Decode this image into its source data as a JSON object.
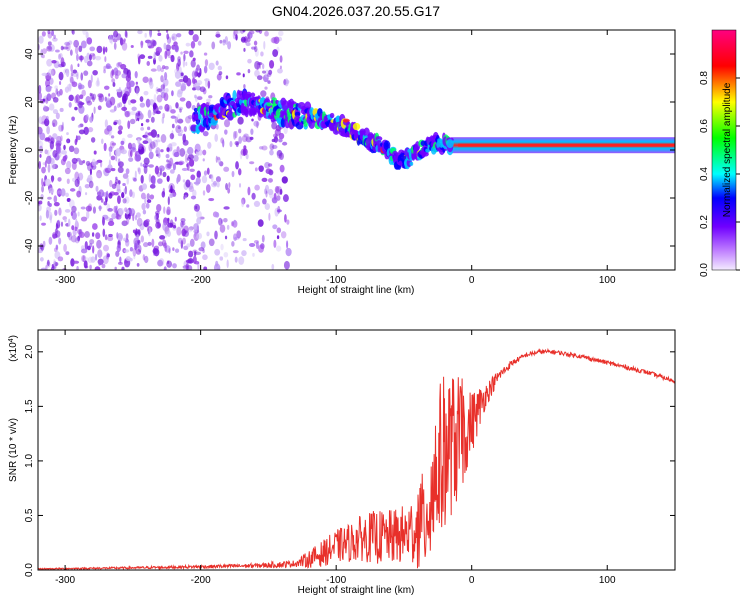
{
  "page": {
    "title": "GN04.2026.037.20.55.G17"
  },
  "chart_data": [
    {
      "type": "heatmap",
      "title": "GN04.2026.037.20.55.G17",
      "xlabel": "Height of straight line (km)",
      "ylabel": "Frequency (Hz)",
      "xlim": [
        -320,
        150
      ],
      "ylim": [
        -50,
        50
      ],
      "xticks": [
        -300,
        -200,
        -100,
        0,
        100
      ],
      "xtick_labels": [
        "-300",
        "-200",
        "-100",
        "0",
        "100"
      ],
      "yticks": [
        -40,
        -20,
        0,
        20,
        40
      ],
      "ytick_labels": [
        "-40",
        "-20",
        "0",
        "20",
        "40"
      ],
      "grid": false,
      "colorbar": {
        "label": "Normalized spectral amplitude",
        "range": [
          0,
          1
        ],
        "ticks": [
          0.0,
          0.2,
          0.4,
          0.6,
          0.8
        ],
        "tick_labels": [
          "0.0",
          "0.2",
          "0.4",
          "0.6",
          "0.8"
        ],
        "colormap": "rainbow"
      },
      "ridge": {
        "x": [
          -205,
          -185,
          -170,
          -155,
          -140,
          -125,
          -110,
          -95,
          -85,
          -75,
          -65,
          -55,
          -45,
          -35,
          -25,
          -15,
          0,
          20,
          40,
          60,
          80,
          100,
          120,
          150
        ],
        "y": [
          12,
          17,
          20,
          19,
          16,
          14,
          13,
          10,
          7,
          4,
          1,
          -4,
          -3,
          1,
          3,
          2,
          2,
          2,
          2,
          2,
          2,
          2,
          2,
          2
        ]
      },
      "colors": {
        "noise": "#8a2be2",
        "ridge_peak": "#ff0000"
      }
    },
    {
      "type": "line",
      "xlabel": "Height of straight line (km)",
      "ylabel": "SNR (10 * v/v)",
      "y_multiplier_label": "(x10",
      "y_multiplier_exponent": "4",
      "y_multiplier_close": ")",
      "xlim": [
        -320,
        150
      ],
      "ylim": [
        0,
        2.2
      ],
      "xticks": [
        -300,
        -200,
        -100,
        0,
        100
      ],
      "xtick_labels": [
        "-300",
        "-200",
        "-100",
        "0",
        "100"
      ],
      "yticks": [
        0,
        0.5,
        1.0,
        1.5,
        2.0
      ],
      "ytick_labels": [
        "0.0",
        "0.5",
        "1.0",
        "1.5",
        "2.0"
      ],
      "grid": false,
      "series": [
        {
          "color": "#e8302a",
          "x": [
            -320,
            -250,
            -200,
            -160,
            -140,
            -130,
            -120,
            -110,
            -100,
            -90,
            -80,
            -70,
            -60,
            -50,
            -40,
            -35,
            -30,
            -25,
            -20,
            -15,
            -10,
            -5,
            0,
            10,
            20,
            30,
            40,
            50,
            60,
            70,
            80,
            90,
            100,
            110,
            120,
            130,
            140,
            150
          ],
          "y": [
            0.01,
            0.02,
            0.03,
            0.04,
            0.05,
            0.06,
            0.1,
            0.15,
            0.22,
            0.25,
            0.3,
            0.3,
            0.3,
            0.32,
            0.38,
            0.45,
            0.7,
            0.95,
            1.1,
            1.15,
            1.2,
            1.25,
            1.35,
            1.6,
            1.78,
            1.9,
            1.97,
            2.0,
            2.0,
            1.98,
            1.96,
            1.93,
            1.9,
            1.87,
            1.84,
            1.81,
            1.77,
            1.73
          ],
          "noise_amplitude": [
            0.005,
            0.01,
            0.015,
            0.02,
            0.03,
            0.03,
            0.08,
            0.12,
            0.15,
            0.18,
            0.22,
            0.25,
            0.25,
            0.28,
            0.35,
            0.4,
            0.55,
            0.6,
            0.6,
            0.55,
            0.5,
            0.4,
            0.3,
            0.12,
            0.05,
            0.03,
            0.02,
            0.02,
            0.02,
            0.02,
            0.02,
            0.02,
            0.02,
            0.02,
            0.02,
            0.02,
            0.02,
            0.02
          ]
        }
      ]
    }
  ]
}
